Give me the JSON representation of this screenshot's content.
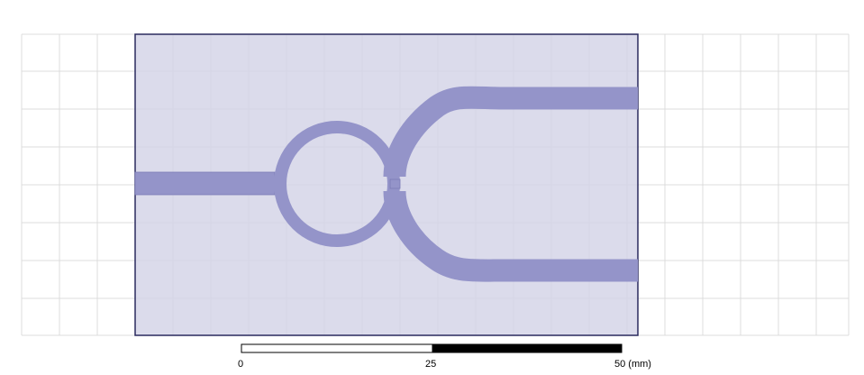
{
  "scale_bar": {
    "label_start": "0",
    "label_mid": "25",
    "label_end": "50 (mm)"
  },
  "colors": {
    "background": "#ffffff",
    "grid_line": "#dcdcdc",
    "substrate_fill": "#d5d5e8",
    "substrate_outline": "#2a2a5e",
    "conductor_fill": "#9494c9",
    "conductor_outline": "#7a7ab6",
    "scale_bar_black": "#000000",
    "scale_bar_white": "#ffffff"
  }
}
